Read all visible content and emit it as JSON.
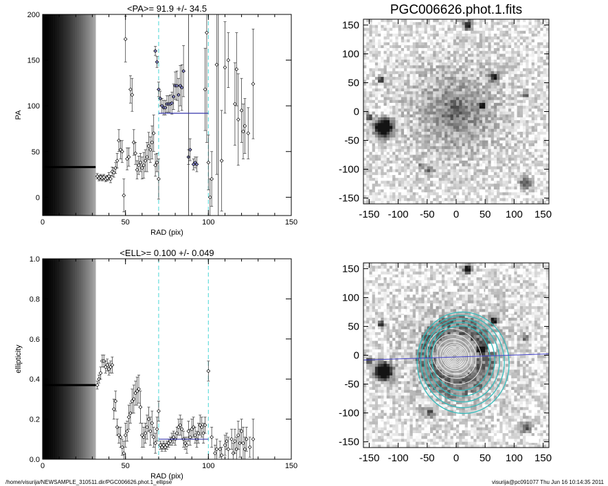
{
  "chart_data": [
    {
      "type": "scatter",
      "title": "<PA>=  91.9 +/-  34.5",
      "xlabel": "RAD (pix)",
      "ylabel": "PA",
      "xlim": [
        0,
        150
      ],
      "ylim": [
        -20,
        200
      ],
      "xticks": [
        0,
        50,
        100,
        150
      ],
      "yticks": [
        0,
        50,
        100,
        150,
        200
      ],
      "reference_lines_x": [
        70,
        100
      ],
      "mean_value": 91.9,
      "mean_segment_x": [
        70,
        100
      ],
      "series": [
        {
          "points": [
            [
              33,
              23,
              3
            ],
            [
              34,
              21,
              3
            ],
            [
              35,
              22,
              3
            ],
            [
              36,
              21,
              3
            ],
            [
              37,
              22,
              3
            ],
            [
              38,
              20,
              3
            ],
            [
              39,
              21,
              3
            ],
            [
              40,
              23,
              4
            ],
            [
              41,
              20,
              4
            ],
            [
              42,
              28,
              5
            ],
            [
              43,
              27,
              5
            ],
            [
              44,
              32,
              6
            ],
            [
              45,
              40,
              8
            ],
            [
              46,
              62,
              12
            ],
            [
              47,
              52,
              10
            ],
            [
              48,
              50,
              12
            ],
            [
              49,
              2,
              18
            ],
            [
              50,
              173,
              25
            ],
            [
              51,
              42,
              12
            ],
            [
              52,
              44,
              10
            ],
            [
              53,
              118,
              15
            ],
            [
              54,
              112,
              18
            ],
            [
              55,
              60,
              14
            ],
            [
              56,
              48,
              12
            ],
            [
              57,
              30,
              10
            ],
            [
              58,
              35,
              10
            ],
            [
              59,
              38,
              10
            ],
            [
              60,
              32,
              12
            ],
            [
              61,
              35,
              14
            ],
            [
              62,
              40,
              12
            ],
            [
              63,
              44,
              16
            ],
            [
              64,
              56,
              15
            ],
            [
              65,
              52,
              14
            ],
            [
              66,
              60,
              18
            ],
            [
              67,
              70,
              20
            ],
            [
              68,
              35,
              12
            ],
            [
              69,
              38,
              10
            ],
            [
              70,
              20,
              22
            ]
          ]
        },
        {
          "points": [
            [
              68,
              160,
              5
            ],
            [
              69,
              148,
              6
            ],
            [
              70,
              118,
              8
            ],
            [
              71,
              108,
              8
            ],
            [
              72,
              100,
              8
            ],
            [
              73,
              98,
              8
            ],
            [
              74,
              98,
              8
            ],
            [
              75,
              102,
              9
            ],
            [
              76,
              102,
              9
            ],
            [
              77,
              102,
              10
            ],
            [
              78,
              103,
              12
            ],
            [
              79,
              110,
              14
            ],
            [
              80,
              122,
              15
            ],
            [
              81,
              122,
              16
            ],
            [
              82,
              112,
              18
            ],
            [
              83,
              122,
              22
            ],
            [
              84,
              120,
              25
            ],
            [
              85,
              138,
              28
            ],
            [
              88,
              44,
              8
            ],
            [
              89,
              52,
              12
            ],
            [
              91,
              36,
              6
            ],
            [
              92,
              38,
              6
            ],
            [
              93,
              36,
              8
            ]
          ]
        },
        {
          "points": [
            [
              98,
              118,
              45
            ],
            [
              99,
              180,
              120
            ],
            [
              100,
              38,
              30
            ],
            [
              101,
              0,
              20
            ],
            [
              102,
              20,
              30
            ],
            [
              105,
              145,
              120
            ],
            [
              108,
              40,
              55
            ],
            [
              110,
              142,
              50
            ],
            [
              112,
              150,
              30
            ],
            [
              116,
              102,
              45
            ],
            [
              117,
              140,
              40
            ],
            [
              118,
              85,
              50
            ],
            [
              120,
              95,
              35
            ],
            [
              121,
              72,
              30
            ],
            [
              122,
              78,
              30
            ],
            [
              124,
              70,
              28
            ],
            [
              127,
              124,
              60
            ]
          ]
        }
      ]
    },
    {
      "type": "image",
      "title": "PGC006626.phot.1.fits",
      "xlim": [
        -160,
        160
      ],
      "ylim": [
        -160,
        160
      ],
      "xticks": [
        -150,
        -100,
        -50,
        0,
        50,
        100,
        150
      ],
      "yticks": [
        150,
        100,
        50,
        0,
        -50,
        -100,
        -150
      ]
    },
    {
      "type": "scatter",
      "title": "<ELL>= 0.100 +/-  0.049",
      "xlabel": "RAD (pix)",
      "ylabel": "ellipticity",
      "xlim": [
        0,
        150
      ],
      "ylim": [
        0,
        1.0
      ],
      "xticks": [
        0,
        50,
        100,
        150
      ],
      "yticks": [
        0.0,
        0.2,
        0.4,
        0.6,
        0.8,
        1.0
      ],
      "ytick_labels": [
        "0.0",
        "0.2",
        "0.4",
        "0.6",
        "0.8",
        "1.0"
      ],
      "reference_lines_x": [
        70,
        100
      ],
      "mean_value": 0.1,
      "mean_segment_x": [
        70,
        100
      ],
      "series": [
        {
          "points": [
            [
              33,
              0.37,
              0.02
            ],
            [
              34,
              0.4,
              0.02
            ],
            [
              35,
              0.43,
              0.03
            ],
            [
              36,
              0.49,
              0.03
            ],
            [
              37,
              0.49,
              0.03
            ],
            [
              38,
              0.46,
              0.03
            ],
            [
              39,
              0.47,
              0.03
            ],
            [
              40,
              0.45,
              0.03
            ],
            [
              41,
              0.46,
              0.03
            ],
            [
              42,
              0.47,
              0.04
            ],
            [
              43,
              0.25,
              0.05
            ],
            [
              44,
              0.29,
              0.05
            ],
            [
              45,
              0.16,
              0.04
            ],
            [
              46,
              0.12,
              0.04
            ],
            [
              47,
              0.11,
              0.05
            ],
            [
              48,
              0.06,
              0.04
            ],
            [
              49,
              0.03,
              0.06
            ],
            [
              50,
              0.12,
              0.06
            ],
            [
              51,
              0.14,
              0.05
            ],
            [
              52,
              0.21,
              0.06
            ],
            [
              53,
              0.23,
              0.05
            ],
            [
              54,
              0.29,
              0.06
            ],
            [
              55,
              0.3,
              0.07
            ],
            [
              56,
              0.33,
              0.06
            ],
            [
              57,
              0.34,
              0.07
            ],
            [
              58,
              0.35,
              0.07
            ],
            [
              59,
              0.26,
              0.08
            ],
            [
              60,
              0.12,
              0.06
            ],
            [
              61,
              0.11,
              0.05
            ],
            [
              62,
              0.13,
              0.05
            ],
            [
              63,
              0.16,
              0.06
            ],
            [
              64,
              0.2,
              0.06
            ],
            [
              65,
              0.14,
              0.07
            ],
            [
              66,
              0.18,
              0.06
            ],
            [
              67,
              0.11,
              0.05
            ],
            [
              68,
              0.08,
              0.05
            ],
            [
              69,
              0.15,
              0.06
            ],
            [
              70,
              0.24,
              0.05
            ]
          ]
        },
        {
          "points": [
            [
              71,
              0.07,
              0.02
            ],
            [
              72,
              0.06,
              0.02
            ],
            [
              73,
              0.07,
              0.02
            ],
            [
              74,
              0.06,
              0.02
            ],
            [
              75,
              0.07,
              0.02
            ],
            [
              76,
              0.08,
              0.02
            ],
            [
              77,
              0.09,
              0.02
            ],
            [
              78,
              0.1,
              0.03
            ],
            [
              79,
              0.11,
              0.03
            ],
            [
              80,
              0.1,
              0.03
            ],
            [
              81,
              0.13,
              0.03
            ],
            [
              82,
              0.16,
              0.04
            ],
            [
              83,
              0.17,
              0.05
            ],
            [
              84,
              0.15,
              0.05
            ],
            [
              85,
              0.1,
              0.04
            ],
            [
              86,
              0.08,
              0.03
            ],
            [
              87,
              0.07,
              0.04
            ],
            [
              88,
              0.14,
              0.05
            ],
            [
              89,
              0.11,
              0.04
            ],
            [
              90,
              0.15,
              0.05
            ],
            [
              91,
              0.16,
              0.05
            ],
            [
              92,
              0.12,
              0.04
            ],
            [
              93,
              0.1,
              0.04
            ],
            [
              94,
              0.13,
              0.05
            ],
            [
              95,
              0.17,
              0.05
            ],
            [
              96,
              0.16,
              0.05
            ],
            [
              97,
              0.13,
              0.05
            ],
            [
              98,
              0.17,
              0.04
            ]
          ]
        },
        {
          "points": [
            [
              100,
              0.44,
              0.05
            ],
            [
              102,
              0.11,
              0.05
            ],
            [
              104,
              0.03,
              0.04
            ],
            [
              105,
              0.05,
              0.05
            ],
            [
              107,
              0.05,
              0.04
            ],
            [
              108,
              0.02,
              0.04
            ],
            [
              110,
              0.07,
              0.05
            ],
            [
              111,
              0.09,
              0.04
            ],
            [
              112,
              0.05,
              0.06
            ],
            [
              114,
              0.1,
              0.05
            ],
            [
              115,
              0.03,
              0.05
            ],
            [
              116,
              0.09,
              0.06
            ],
            [
              117,
              0.05,
              0.06
            ],
            [
              118,
              0.12,
              0.07
            ],
            [
              119,
              0.08,
              0.07
            ],
            [
              120,
              0.14,
              0.06
            ],
            [
              121,
              0.08,
              0.08
            ],
            [
              122,
              0.05,
              0.06
            ],
            [
              123,
              0.1,
              0.06
            ],
            [
              125,
              0.06,
              0.05
            ],
            [
              127,
              0.1,
              0.1
            ]
          ]
        }
      ]
    },
    {
      "type": "image",
      "title": "",
      "xlim": [
        -160,
        160
      ],
      "ylim": [
        -160,
        160
      ],
      "xticks": [
        -150,
        -100,
        -50,
        0,
        50,
        100,
        150
      ],
      "yticks": [
        150,
        100,
        50,
        0,
        -50,
        -100,
        -150
      ],
      "ellipse_radii": [
        70,
        80,
        90,
        100,
        110
      ],
      "contour_radii": [
        6,
        9,
        12,
        15,
        18,
        21,
        24,
        28,
        34,
        42,
        52
      ],
      "pa_line_deg": 1.9
    }
  ],
  "footer": {
    "left": "/home/visurija/NEWSAMPLE_310511.dir/PGC006626.phot.1_ellipse",
    "right": "visurija@pc091077  Thu Jun 16 10:14:35 2011"
  },
  "colors": {
    "reference_line": "#66dddd",
    "mean_line": "#3333aa",
    "highlight_point": "#8888cc",
    "ellipse": "#33bbbb",
    "pa_line": "#4444cc"
  }
}
